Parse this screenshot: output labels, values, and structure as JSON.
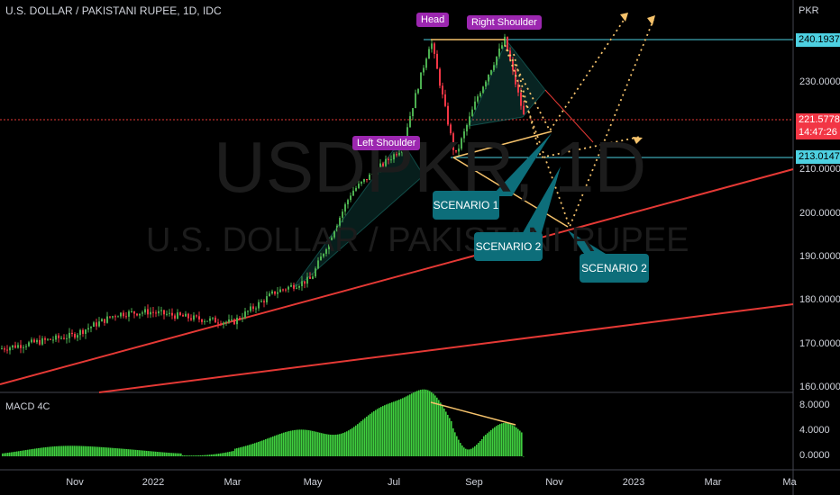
{
  "header": {
    "symbol_title": "U.S. DOLLAR / PAKISTANI RUPEE, 1D, IDC",
    "currency": "PKR"
  },
  "watermark": {
    "symbol": "USDPKR, 1D",
    "name": "U.S. DOLLAR / PAKISTANI RUPEE"
  },
  "annotations": {
    "head": "Head",
    "right_shoulder": "Right Shoulder",
    "left_shoulder": "Left Shoulder",
    "scenario_1": "SCENARIO 1",
    "scenario_2a": "SCENARIO 2",
    "scenario_2b": "SCENARIO 2"
  },
  "price_labels": {
    "resistance": "240.1937",
    "current": "221.5778",
    "countdown": "14:47:26",
    "support": "213.0147"
  },
  "macd": {
    "title": "MACD 4C",
    "ticks": [
      "8.0000",
      "4.0000",
      "0.0000"
    ]
  },
  "colors": {
    "up": "#26a69a",
    "candle_green": "#4caf50",
    "candle_red": "#f23645",
    "trendline": "#e53935",
    "neckline": "#f5c26b",
    "resistance": "#4dd0e1",
    "scenario_box": "#0d6e7a",
    "label_purple": "#9c27b0"
  },
  "chart_data": {
    "type": "candlestick",
    "title": "U.S. DOLLAR / PAKISTANI RUPEE, 1D, IDC",
    "ylabel": "PKR",
    "y_ticks": [
      "240.0000",
      "230.0000",
      "220.0000",
      "210.0000",
      "200.0000",
      "190.0000",
      "180.0000",
      "170.0000",
      "160.0000"
    ],
    "x_ticks": [
      "Nov",
      "2022",
      "Mar",
      "May",
      "Jul",
      "Sep",
      "Nov",
      "2023",
      "Mar",
      "Ma"
    ],
    "ylim": [
      160,
      249
    ],
    "approx_close_series": [
      {
        "t": "Oct",
        "v": 169
      },
      {
        "t": "Nov",
        "v": 172
      },
      {
        "t": "Dec",
        "v": 177
      },
      {
        "t": "2022",
        "v": 177.5
      },
      {
        "t": "Feb",
        "v": 176
      },
      {
        "t": "Mar",
        "v": 175
      },
      {
        "t": "Apr",
        "v": 182
      },
      {
        "t": "May",
        "v": 185
      },
      {
        "t": "Jun",
        "v": 205
      },
      {
        "t": "Jul",
        "v": 215
      },
      {
        "t": "Jul-late",
        "v": 240
      },
      {
        "t": "Aug",
        "v": 213
      },
      {
        "t": "Sep-early",
        "v": 227
      },
      {
        "t": "Sep-mid",
        "v": 240
      },
      {
        "t": "Sep-late",
        "v": 221.6
      }
    ],
    "levels": {
      "resistance": 240.1937,
      "last": 221.5778,
      "support": 213.0147
    }
  }
}
